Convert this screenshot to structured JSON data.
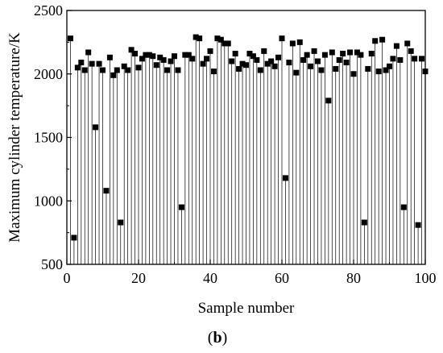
{
  "chart_data": {
    "type": "bar",
    "style": "stem",
    "xlabel": "Sample number",
    "ylabel": "Maximum cylinder temperature/K",
    "panel_label": "(b)",
    "xlim": [
      0,
      100
    ],
    "ylim": [
      500,
      2500
    ],
    "xticks": [
      0,
      20,
      40,
      60,
      80,
      100
    ],
    "yticks": [
      500,
      1000,
      1500,
      2000,
      2500
    ],
    "grid": false,
    "marker": "square",
    "x": [
      1,
      2,
      3,
      4,
      5,
      6,
      7,
      8,
      9,
      10,
      11,
      12,
      13,
      14,
      15,
      16,
      17,
      18,
      19,
      20,
      21,
      22,
      23,
      24,
      25,
      26,
      27,
      28,
      29,
      30,
      31,
      32,
      33,
      34,
      35,
      36,
      37,
      38,
      39,
      40,
      41,
      42,
      43,
      44,
      45,
      46,
      47,
      48,
      49,
      50,
      51,
      52,
      53,
      54,
      55,
      56,
      57,
      58,
      59,
      60,
      61,
      62,
      63,
      64,
      65,
      66,
      67,
      68,
      69,
      70,
      71,
      72,
      73,
      74,
      75,
      76,
      77,
      78,
      79,
      80,
      81,
      82,
      83,
      84,
      85,
      86,
      87,
      88,
      89,
      90,
      91,
      92,
      93,
      94,
      95,
      96,
      97,
      98,
      99,
      100
    ],
    "values": [
      2280,
      710,
      2050,
      2090,
      2030,
      2170,
      2080,
      1580,
      2080,
      2030,
      1080,
      2130,
      1990,
      2030,
      830,
      2060,
      2030,
      2190,
      2160,
      2050,
      2120,
      2150,
      2150,
      2140,
      2070,
      2130,
      2110,
      2030,
      2100,
      2140,
      2030,
      950,
      2150,
      2150,
      2120,
      2290,
      2280,
      2080,
      2120,
      2180,
      2020,
      2280,
      2270,
      2240,
      2240,
      2100,
      2160,
      2040,
      2080,
      2070,
      2160,
      2140,
      2110,
      2030,
      2180,
      2080,
      2100,
      2060,
      2130,
      2280,
      1180,
      2090,
      2240,
      2010,
      2250,
      2110,
      2150,
      2060,
      2180,
      2100,
      2030,
      2150,
      1790,
      2170,
      2040,
      2110,
      2160,
      2090,
      2170,
      2000,
      2170,
      2150,
      830,
      2040,
      2160,
      2260,
      2020,
      2270,
      2030,
      2060,
      2120,
      2220,
      2110,
      950,
      2240,
      2180,
      2120,
      810,
      2120,
      2020
    ]
  }
}
